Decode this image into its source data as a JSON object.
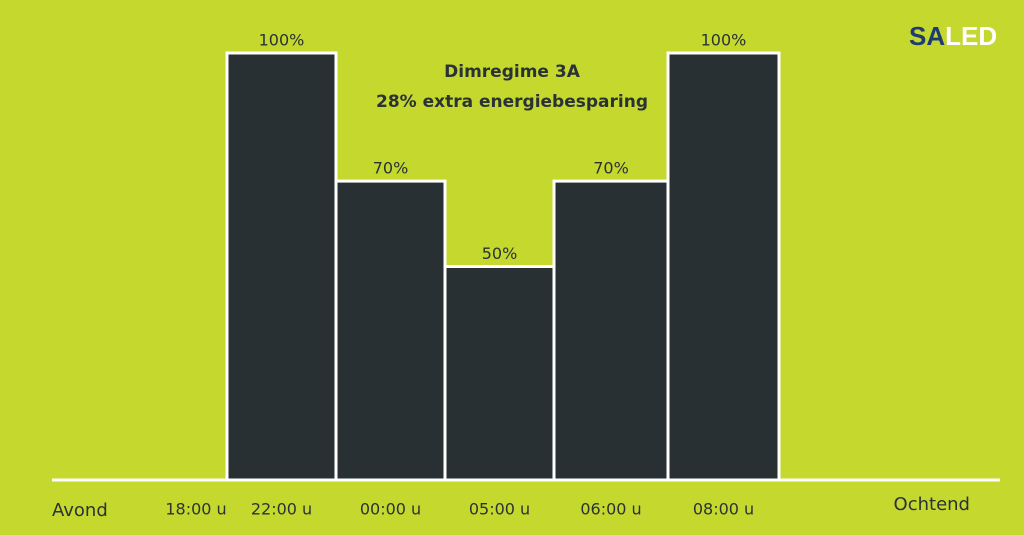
{
  "chart_data": {
    "type": "bar",
    "title": "Dimregime 3A",
    "subtitle": "28% extra energiebesparing",
    "logo": [
      "SA",
      "LED"
    ],
    "x_start_label": "Avond",
    "x_end_label": "Ochtend",
    "categories": [
      "18:00 u",
      "22:00 u",
      "00:00 u",
      "05:00 u",
      "06:00 u",
      "08:00 u"
    ],
    "values": [
      null,
      100,
      70,
      50,
      70,
      100
    ],
    "value_labels": [
      null,
      "100%",
      "70%",
      "50%",
      "70%",
      "100%"
    ],
    "color": "#283033",
    "ylim": [
      0,
      100
    ]
  }
}
